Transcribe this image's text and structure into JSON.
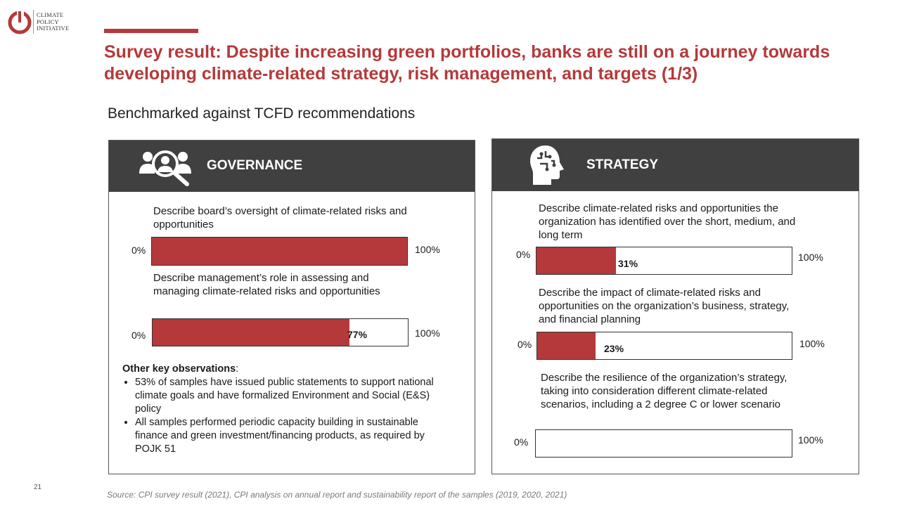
{
  "logo": {
    "lines": [
      "CLIMATE",
      "POLICY",
      "INITIATIVE"
    ],
    "color": "#b5393a"
  },
  "title": "Survey result: Despite increasing green portfolios, banks are still on a journey towards developing climate-related strategy, risk management, and targets (1/3)",
  "subtitle": "Benchmarked against TCFD recommendations",
  "governance": {
    "heading": "GOVERNANCE",
    "icon": "people-search-icon",
    "items": [
      {
        "label": "Describe board’s oversight of climate-related risks and opportunities",
        "value": 100,
        "value_label": "",
        "min_label": "0%",
        "max_label": "100%"
      },
      {
        "label": "Describe management’s role in assessing and managing climate-related risks and opportunities",
        "value": 77,
        "value_label": "77%",
        "min_label": "0%",
        "max_label": "100%"
      }
    ],
    "observations": {
      "heading": "Other key observations",
      "bullets": [
        "53% of samples have issued public statements to support national climate goals and have formalized Environment and Social  (E&S) policy",
        "All samples performed periodic capacity building in sustainable finance and green investment/financing products, as required by POJK 51"
      ]
    }
  },
  "strategy": {
    "heading": "STRATEGY",
    "icon": "head-strategy-icon",
    "items": [
      {
        "label": "Describe climate-related risks and opportunities the organization has identified over the short, medium, and long term",
        "value": 31,
        "value_label": "31%",
        "min_label": "0%",
        "max_label": "100%"
      },
      {
        "label": "Describe the impact of climate-related risks and opportunities on the organization’s business, strategy, and financial planning",
        "value": 23,
        "value_label": "23%",
        "min_label": "0%",
        "max_label": "100%"
      },
      {
        "label": "Describe the resilience  of the organization’s strategy, taking into consideration different climate-related scenarios,  including a 2 degree C or lower scenario",
        "value": 0,
        "value_label": "",
        "min_label": "0%",
        "max_label": "100%"
      }
    ]
  },
  "colors": {
    "accent": "#b5393a",
    "header_bg": "#404040"
  },
  "page_number": "21",
  "source": "Source: CPI survey  result (2021),  CPI analysis on annual report and sustainability report of the samples (2019,  2020,  2021)"
}
